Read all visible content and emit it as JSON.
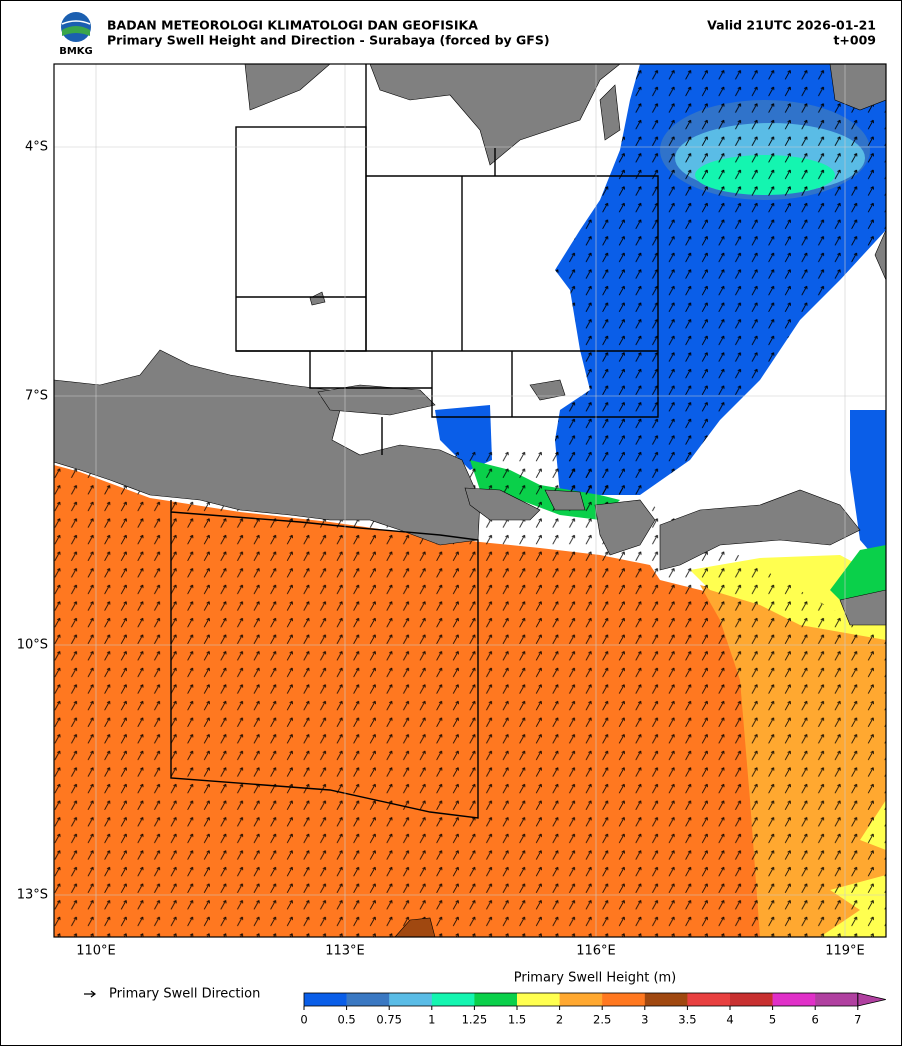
{
  "header": {
    "org": "BADAN METEOROLOGI KLIMATOLOGI DAN GEOFISIKA",
    "title": "Primary Swell Height and Direction - Surabaya (forced by GFS)",
    "valid": "Valid 21UTC 2026-01-21",
    "step": "t+009",
    "logo_text": "BMKG"
  },
  "map": {
    "lat_labels": [
      "4°S",
      "7°S",
      "10°S",
      "13°S"
    ],
    "lon_labels": [
      "110°E",
      "113°E",
      "116°E",
      "119°E"
    ]
  },
  "legend": {
    "arrow_label": "Primary Swell Direction"
  },
  "colorbar": {
    "title": "Primary Swell Height (m)",
    "ticks": [
      0,
      0.5,
      0.75,
      1,
      1.25,
      1.5,
      2,
      2.5,
      3,
      3.5,
      4,
      5,
      6,
      7
    ],
    "colors": [
      "#0a5ee8",
      "#3a78c2",
      "#5abce6",
      "#14f5b0",
      "#0ad04a",
      "#ffff50",
      "#ffa830",
      "#ff7820",
      "#a04810",
      "#e84040",
      "#c83030",
      "#e030c8",
      "#b040a0"
    ]
  }
}
